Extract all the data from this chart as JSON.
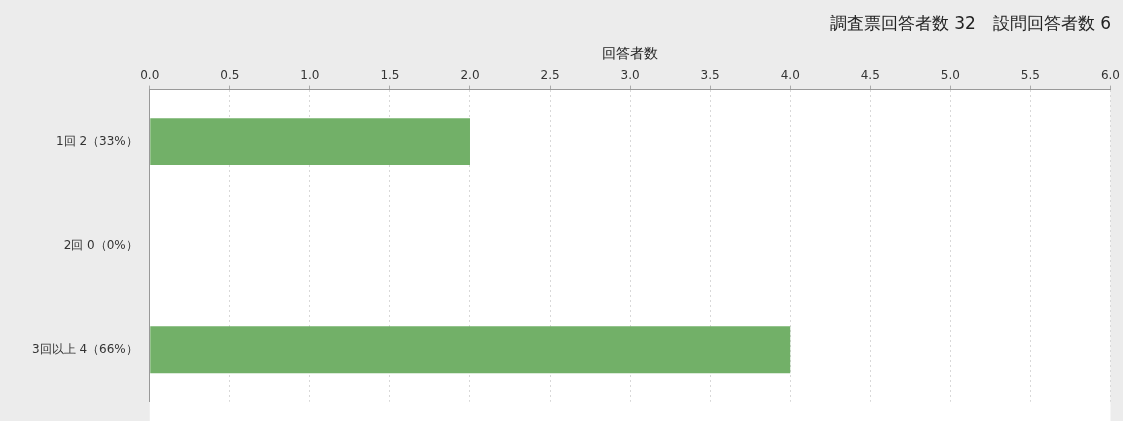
{
  "chart_data": {
    "type": "bar",
    "orientation": "horizontal",
    "title": "調査票回答者数 32　設問回答者数 6",
    "xlabel": "回答者数",
    "categories": [
      "1回 2（33%）",
      "2回 0（0%）",
      "3回以上 4（66%）"
    ],
    "values": [
      2,
      0,
      4
    ],
    "color": "#72b068",
    "xlim": [
      0,
      6
    ],
    "xticks": [
      {
        "value": 0,
        "label": "0.0"
      },
      {
        "value": 0.5,
        "label": "0.5"
      },
      {
        "value": 1,
        "label": "1.0"
      },
      {
        "value": 1.5,
        "label": "1.5"
      },
      {
        "value": 2,
        "label": "2.0"
      },
      {
        "value": 2.5,
        "label": "2.5"
      },
      {
        "value": 3,
        "label": "3.0"
      },
      {
        "value": 3.5,
        "label": "3.5"
      },
      {
        "value": 4,
        "label": "4.0"
      },
      {
        "value": 4.5,
        "label": "4.5"
      },
      {
        "value": 5,
        "label": "5.0"
      },
      {
        "value": 5.5,
        "label": "5.5"
      },
      {
        "value": 6,
        "label": "6.0"
      }
    ],
    "grid": "x",
    "legend": false
  }
}
